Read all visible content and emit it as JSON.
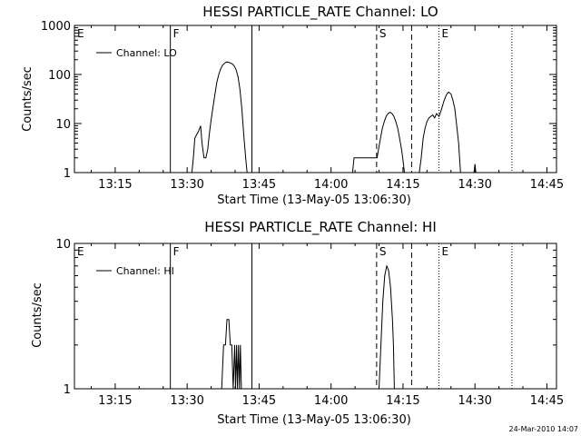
{
  "timestamp": "24-Mar-2010 14:07",
  "chart_data": [
    {
      "type": "line",
      "title": "HESSI PARTICLE_RATE Channel: LO",
      "xlabel": "Start Time (13-May-05 13:06:30)",
      "ylabel": "Counts/sec",
      "y_scale": "log",
      "ylim": [
        1,
        1000
      ],
      "y_ticks": [
        {
          "value": 1,
          "label": "1"
        },
        {
          "value": 10,
          "label": "10"
        },
        {
          "value": 100,
          "label": "100"
        },
        {
          "value": 1000,
          "label": "1000"
        }
      ],
      "xlim_min_of_day": [
        786.5,
        887
      ],
      "x_ticks": [
        {
          "value": 795,
          "label": "13:15"
        },
        {
          "value": 810,
          "label": "13:30"
        },
        {
          "value": 825,
          "label": "13:45"
        },
        {
          "value": 840,
          "label": "14:00"
        },
        {
          "value": 855,
          "label": "14:15"
        },
        {
          "value": 870,
          "label": "14:30"
        },
        {
          "value": 885,
          "label": "14:45"
        }
      ],
      "legend": {
        "label": "Channel: LO",
        "position": "top-left"
      },
      "markers": [
        {
          "t": 786.5,
          "style": "solid",
          "label": "E"
        },
        {
          "t": 806.5,
          "style": "solid",
          "label": "F"
        },
        {
          "t": 823.5,
          "style": "solid",
          "label": ""
        },
        {
          "t": 849.5,
          "style": "dashed",
          "label": "S"
        },
        {
          "t": 856.8,
          "style": "dashed",
          "label": ""
        },
        {
          "t": 862.5,
          "style": "dotted",
          "label": "E"
        },
        {
          "t": 877.7,
          "style": "dotted",
          "label": ""
        }
      ],
      "series": [
        {
          "name": "Channel: LO",
          "segments": [
            [
              [
                811.0,
                1
              ],
              [
                811.3,
                2
              ],
              [
                811.6,
                5
              ],
              [
                812.0,
                6
              ],
              [
                812.4,
                7
              ],
              [
                812.8,
                9
              ],
              [
                813.1,
                4
              ],
              [
                813.5,
                2
              ],
              [
                813.9,
                2
              ],
              [
                814.3,
                3
              ],
              [
                814.6,
                6
              ],
              [
                815.0,
                12
              ],
              [
                815.4,
                22
              ],
              [
                815.8,
                40
              ],
              [
                816.2,
                70
              ],
              [
                816.6,
                100
              ],
              [
                817.0,
                130
              ],
              [
                817.4,
                155
              ],
              [
                817.8,
                170
              ],
              [
                818.2,
                180
              ],
              [
                818.6,
                178
              ],
              [
                819.0,
                172
              ],
              [
                819.4,
                165
              ],
              [
                819.8,
                150
              ],
              [
                820.2,
                125
              ],
              [
                820.6,
                90
              ],
              [
                821.0,
                50
              ],
              [
                821.4,
                20
              ],
              [
                821.8,
                6
              ],
              [
                822.2,
                2
              ],
              [
                822.5,
                1
              ]
            ],
            [
              [
                844.5,
                1
              ],
              [
                844.8,
                2
              ],
              [
                849.6,
                2
              ],
              [
                849.9,
                3
              ],
              [
                850.3,
                5
              ],
              [
                850.7,
                8
              ],
              [
                851.1,
                11
              ],
              [
                851.5,
                14
              ],
              [
                851.9,
                16
              ],
              [
                852.3,
                17
              ],
              [
                852.7,
                16
              ],
              [
                853.1,
                14
              ],
              [
                853.5,
                11
              ],
              [
                853.9,
                8
              ],
              [
                854.3,
                5
              ],
              [
                854.7,
                3
              ],
              [
                855.0,
                1.8
              ],
              [
                855.3,
                1
              ]
            ],
            [
              [
                858.4,
                1
              ],
              [
                858.8,
                2
              ],
              [
                859.2,
                5
              ],
              [
                859.6,
                8
              ],
              [
                860.0,
                11
              ],
              [
                860.4,
                13
              ],
              [
                860.8,
                14
              ],
              [
                861.2,
                15
              ],
              [
                861.6,
                13
              ],
              [
                862.0,
                16
              ],
              [
                862.5,
                14
              ],
              [
                863.0,
                19
              ],
              [
                863.5,
                28
              ],
              [
                864.0,
                38
              ],
              [
                864.5,
                44
              ],
              [
                865.0,
                40
              ],
              [
                865.4,
                30
              ],
              [
                865.8,
                20
              ],
              [
                866.2,
                9
              ],
              [
                866.6,
                4
              ],
              [
                867.0,
                1
              ]
            ],
            [
              [
                869.8,
                1
              ],
              [
                870.0,
                1.5
              ],
              [
                870.2,
                1
              ]
            ]
          ]
        }
      ]
    },
    {
      "type": "line",
      "title": "HESSI PARTICLE_RATE Channel: HI",
      "xlabel": "Start Time (13-May-05 13:06:30)",
      "ylabel": "Counts/sec",
      "y_scale": "log",
      "ylim": [
        1,
        10
      ],
      "y_ticks": [
        {
          "value": 1,
          "label": "1"
        },
        {
          "value": 10,
          "label": "10"
        }
      ],
      "xlim_min_of_day": [
        786.5,
        887
      ],
      "x_ticks": [
        {
          "value": 795,
          "label": "13:15"
        },
        {
          "value": 810,
          "label": "13:30"
        },
        {
          "value": 825,
          "label": "13:45"
        },
        {
          "value": 840,
          "label": "14:00"
        },
        {
          "value": 855,
          "label": "14:15"
        },
        {
          "value": 870,
          "label": "14:30"
        },
        {
          "value": 885,
          "label": "14:45"
        }
      ],
      "legend": {
        "label": "Channel: HI",
        "position": "top-left"
      },
      "markers": [
        {
          "t": 786.5,
          "style": "solid",
          "label": "E"
        },
        {
          "t": 806.5,
          "style": "solid",
          "label": "F"
        },
        {
          "t": 823.5,
          "style": "solid",
          "label": ""
        },
        {
          "t": 849.5,
          "style": "dashed",
          "label": "S"
        },
        {
          "t": 856.8,
          "style": "dashed",
          "label": ""
        },
        {
          "t": 862.5,
          "style": "dotted",
          "label": "E"
        },
        {
          "t": 877.7,
          "style": "dotted",
          "label": ""
        }
      ],
      "series": [
        {
          "name": "Channel: HI",
          "segments": [
            [
              [
                817.2,
                1
              ],
              [
                817.6,
                2
              ],
              [
                818.0,
                2
              ],
              [
                818.3,
                3
              ],
              [
                818.7,
                3
              ],
              [
                819.0,
                2
              ],
              [
                819.3,
                2
              ],
              [
                819.6,
                1
              ],
              [
                819.9,
                2
              ],
              [
                820.1,
                1
              ],
              [
                820.3,
                2
              ],
              [
                820.5,
                1
              ],
              [
                820.7,
                2
              ],
              [
                820.9,
                1
              ],
              [
                821.1,
                2
              ],
              [
                821.3,
                1
              ]
            ],
            [
              [
                850.0,
                1
              ],
              [
                850.4,
                2
              ],
              [
                850.8,
                4
              ],
              [
                851.2,
                6
              ],
              [
                851.6,
                7
              ],
              [
                852.0,
                6.5
              ],
              [
                852.4,
                5
              ],
              [
                852.8,
                3
              ],
              [
                853.0,
                2
              ],
              [
                853.2,
                1
              ]
            ]
          ]
        }
      ]
    }
  ]
}
